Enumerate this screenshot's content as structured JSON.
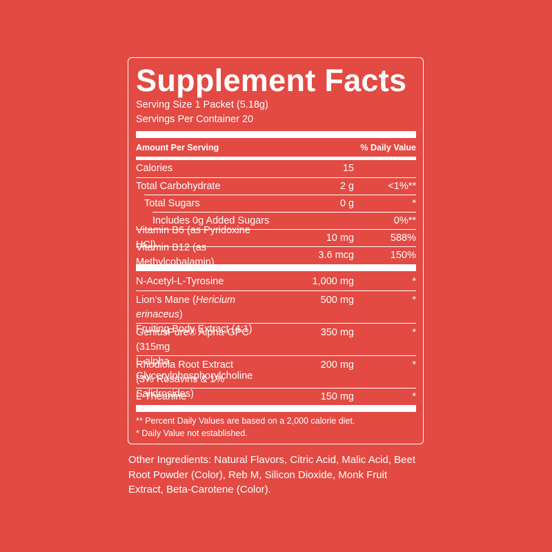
{
  "title": "Supplement Facts",
  "serving_size": "Serving Size 1 Packet (5.18g)",
  "servings_per_container": "Servings Per Container 20",
  "header": {
    "amount": "Amount Per Serving",
    "daily_value": "% Daily Value"
  },
  "nutrients": [
    {
      "name": "Calories",
      "amount": "15"
    },
    {
      "name": "Total Carbohydrate",
      "amount": "2 g",
      "daily_value": "<1%**"
    },
    {
      "name": "Total Sugars",
      "amount": "0 g",
      "daily_value": "*"
    },
    {
      "name": "Includes 0g Added Sugars",
      "daily_value": "0%**"
    },
    {
      "name": "Vitamin B6 (as Pyridoxine HCl)",
      "amount": "10 mg",
      "daily_value": "588%"
    },
    {
      "name": "Vitamin B12 (as Methylcobalamin)",
      "amount": "3.6 mcg",
      "daily_value": "150%"
    }
  ],
  "ingredients": [
    {
      "name": "N-Acetyl-L-Tyrosine",
      "amount": "1,000 mg",
      "daily_value": "*"
    },
    {
      "name": [
        "Lion’s Mane (",
        "Hericium erinaceus",
        ")"
      ],
      "name_line2": "Fruiting Body Extract (4:1)",
      "amount": "500 mg",
      "daily_value": "*"
    },
    {
      "name": "GeniusPure® Alpha-GPC (315mg",
      "name_line2": "L-alpha Glycerylphosphorylcholine",
      "amount": "350 mg",
      "daily_value": "*"
    },
    {
      "name": "Rhodiola Root Extract",
      "name_line2": "(3% Rosavins & 1% Salidrosides)",
      "amount": "200 mg",
      "daily_value": "*"
    },
    {
      "name": "L-Theanine",
      "amount": "150 mg",
      "daily_value": "*"
    }
  ],
  "footnotes": [
    "** Percent Daily Values are based on a 2,000 calorie diet.",
    "* Daily Value not established."
  ],
  "other_ingredients": "Other Ingredients: Natural Flavors, Citric Acid, Malic Acid, Beet Root Powder (Color), Reb M, Silicon Dioxide, Monk Fruit Extract, Beta-Carotene (Color)."
}
